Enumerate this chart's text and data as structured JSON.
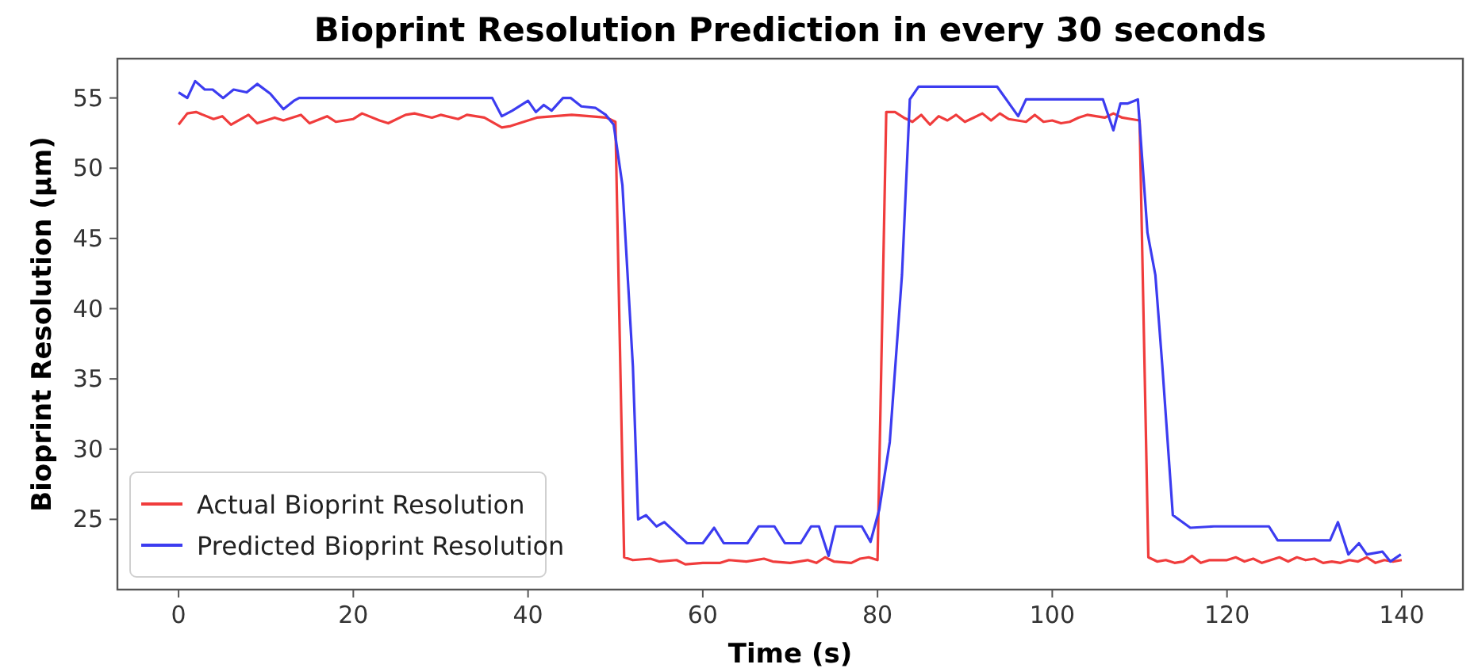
{
  "chart_data": {
    "type": "line",
    "title": "Bioprint Resolution Prediction in every 30 seconds",
    "xlabel": "Time (s)",
    "ylabel": "Bioprint Resolution (µm)",
    "xlim": [
      -7,
      147
    ],
    "xticks": [
      0,
      20,
      40,
      60,
      80,
      100,
      120,
      140
    ],
    "ylim": [
      20,
      57.8
    ],
    "yticks": [
      25,
      30,
      35,
      40,
      45,
      50,
      55
    ],
    "legend": "bottom left",
    "grid": false,
    "series": [
      {
        "name": "Actual Bioprint Resolution",
        "color": "#f03c3c",
        "x": [
          0,
          1,
          2,
          4,
          5,
          6,
          8,
          9,
          11,
          12,
          14,
          15,
          17,
          18,
          20,
          21,
          23,
          24,
          26,
          27,
          29,
          30,
          32,
          33,
          35,
          37,
          38,
          40,
          41,
          43,
          45,
          47,
          49,
          50,
          51,
          52,
          54,
          55,
          57,
          58,
          60,
          62,
          63,
          65,
          67,
          68,
          70,
          72,
          73,
          74,
          75,
          77,
          78,
          79,
          80,
          81,
          82,
          83,
          84,
          85,
          86,
          87,
          88,
          89,
          90,
          91,
          92,
          93,
          94,
          95,
          96,
          97,
          98,
          99,
          100,
          101,
          102,
          103,
          104,
          105,
          106,
          107,
          108,
          109,
          110,
          111,
          112,
          113,
          114,
          115,
          116,
          117,
          118,
          120,
          121,
          122,
          123,
          124,
          126,
          127,
          128,
          129,
          130,
          131,
          132,
          133,
          134,
          135,
          136,
          137,
          138,
          139,
          140
        ],
        "values": [
          53.1,
          53.9,
          54.0,
          53.5,
          53.7,
          53.1,
          53.8,
          53.2,
          53.6,
          53.4,
          53.8,
          53.2,
          53.7,
          53.3,
          53.5,
          53.9,
          53.4,
          53.2,
          53.8,
          53.9,
          53.6,
          53.8,
          53.5,
          53.8,
          53.6,
          52.9,
          53.0,
          53.4,
          53.6,
          53.7,
          53.8,
          53.7,
          53.6,
          53.3,
          22.3,
          22.1,
          22.2,
          22.0,
          22.1,
          21.8,
          21.9,
          21.9,
          22.1,
          22.0,
          22.2,
          22.0,
          21.9,
          22.1,
          21.9,
          22.3,
          22.0,
          21.9,
          22.2,
          22.3,
          22.1,
          54.0,
          54.0,
          53.6,
          53.3,
          53.8,
          53.1,
          53.7,
          53.4,
          53.8,
          53.3,
          53.6,
          53.9,
          53.4,
          53.9,
          53.5,
          53.4,
          53.3,
          53.8,
          53.3,
          53.4,
          53.2,
          53.3,
          53.6,
          53.8,
          53.7,
          53.6,
          53.9,
          53.6,
          53.5,
          53.4,
          22.3,
          22.0,
          22.1,
          21.9,
          22.0,
          22.4,
          21.9,
          22.1,
          22.1,
          22.3,
          22.0,
          22.2,
          21.9,
          22.3,
          22.0,
          22.3,
          22.1,
          22.2,
          21.9,
          22.0,
          21.9,
          22.1,
          22.0,
          22.3,
          21.9,
          22.1,
          22.0,
          22.1
        ]
      },
      {
        "name": "Predicted Bioprint Resolution",
        "color": "#3c3cf0",
        "x": [
          0,
          1,
          1.9,
          3,
          3.9,
          5.1,
          6.3,
          7.8,
          9,
          10.5,
          12,
          13.2,
          13.8,
          35.9,
          37,
          38.2,
          40,
          40.9,
          41.8,
          42.7,
          44,
          44.9,
          46.1,
          47.7,
          48.9,
          49.8,
          50.8,
          52,
          52.6,
          53.5,
          54.7,
          55.6,
          58.2,
          60,
          61.3,
          62.4,
          65.1,
          66.4,
          68.2,
          69.4,
          71.2,
          72.4,
          73.3,
          74.4,
          75.2,
          78.2,
          79.2,
          80.2,
          81.4,
          82.8,
          83.7,
          84.7,
          93.7,
          96.1,
          97,
          105.8,
          107,
          107.8,
          108.6,
          109.8,
          110.9,
          111.8,
          112.6,
          113.8,
          115.8,
          118.5,
          124.8,
          125.8,
          131.8,
          132.7,
          133.9,
          135.1,
          136,
          137.8,
          138.7,
          139.9
        ],
        "values": [
          55.4,
          55.0,
          56.2,
          55.6,
          55.6,
          55.0,
          55.6,
          55.4,
          56.0,
          55.3,
          54.2,
          54.8,
          55.0,
          55.0,
          53.7,
          54.1,
          54.8,
          54.0,
          54.5,
          54.1,
          55.0,
          55.0,
          54.4,
          54.3,
          53.8,
          53.1,
          48.8,
          35.9,
          25.0,
          25.3,
          24.5,
          24.8,
          23.3,
          23.3,
          24.4,
          23.3,
          23.3,
          24.5,
          24.5,
          23.3,
          23.3,
          24.5,
          24.5,
          22.4,
          24.5,
          24.5,
          23.4,
          25.7,
          30.5,
          42.4,
          54.9,
          55.8,
          55.8,
          53.7,
          54.9,
          54.9,
          52.7,
          54.6,
          54.6,
          54.9,
          45.4,
          42.4,
          35.9,
          25.3,
          24.4,
          24.5,
          24.5,
          23.5,
          23.5,
          24.8,
          22.5,
          23.3,
          22.5,
          22.7,
          22.0,
          22.5
        ]
      }
    ]
  }
}
